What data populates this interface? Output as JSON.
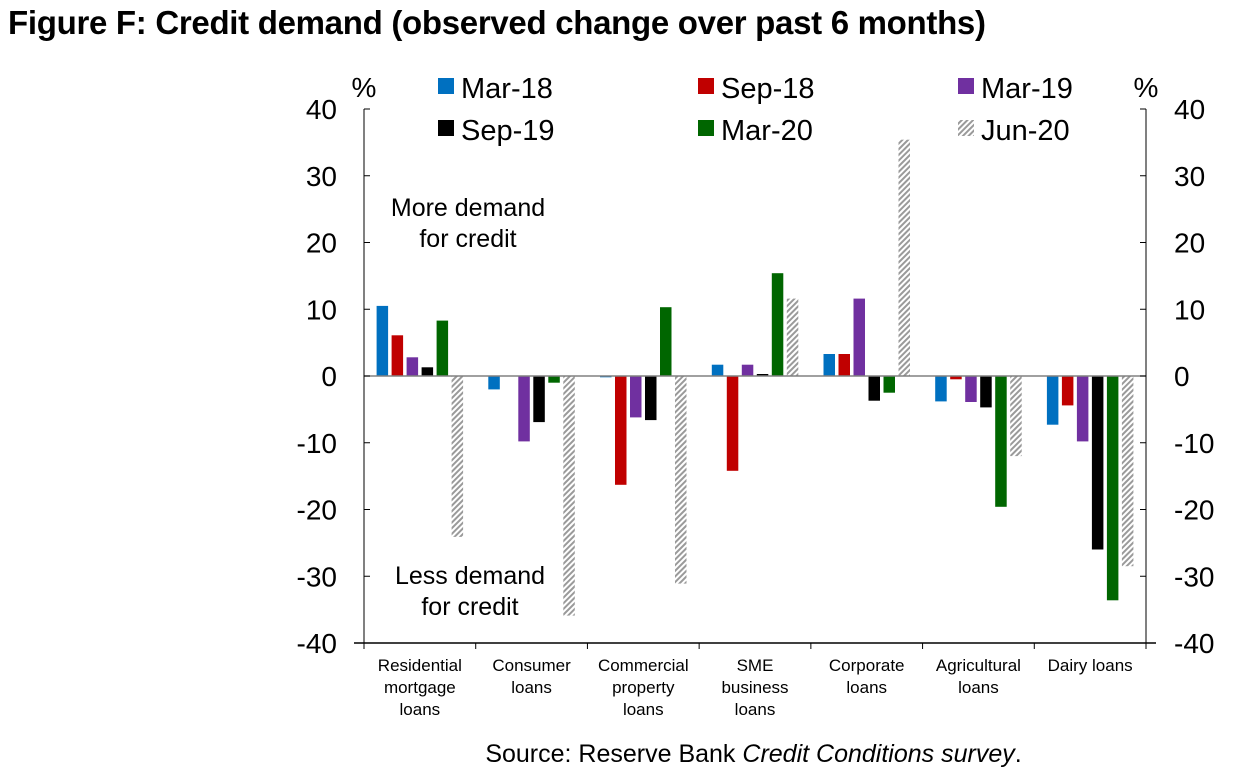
{
  "chart_data": {
    "type": "bar",
    "title": "Figure F: Credit demand (observed change over past 6 months)",
    "xlabel": "",
    "ylabel": "%",
    "ylabel_right": "%",
    "ylim": [
      -40,
      40
    ],
    "yticks": [
      40,
      30,
      20,
      10,
      0,
      -10,
      -20,
      -30,
      -40
    ],
    "grid": false,
    "legend_position": "top",
    "categories": [
      [
        "Residential",
        "mortgage",
        "loans"
      ],
      [
        "Consumer",
        "loans"
      ],
      [
        "Commercial",
        "property",
        "loans"
      ],
      [
        "SME",
        "business",
        "loans"
      ],
      [
        "Corporate",
        "loans"
      ],
      [
        "Agricultural",
        "loans"
      ],
      [
        "Dairy loans"
      ]
    ],
    "category_names": [
      "Residential mortgage loans",
      "Consumer loans",
      "Commercial property loans",
      "SME business loans",
      "Corporate loans",
      "Agricultural loans",
      "Dairy loans"
    ],
    "series": [
      {
        "name": "Mar-18",
        "color": "#0070C0",
        "pattern": "solid",
        "values": [
          10.5,
          -2.0,
          -0.2,
          1.7,
          3.3,
          -3.8,
          -7.3
        ]
      },
      {
        "name": "Sep-18",
        "color": "#C00000",
        "pattern": "solid",
        "values": [
          6.1,
          0.0,
          -16.3,
          -14.2,
          3.3,
          -0.5,
          -4.4
        ]
      },
      {
        "name": "Mar-19",
        "color": "#7030A0",
        "pattern": "solid",
        "values": [
          2.8,
          -9.8,
          -6.2,
          1.7,
          11.6,
          -3.9,
          -9.8
        ]
      },
      {
        "name": "Sep-19",
        "color": "#000000",
        "pattern": "solid",
        "values": [
          1.3,
          -6.9,
          -6.6,
          0.3,
          -3.7,
          -4.7,
          -26.0
        ]
      },
      {
        "name": "Mar-20",
        "color": "#006600",
        "pattern": "solid",
        "values": [
          8.3,
          -1.0,
          10.3,
          15.4,
          -2.5,
          -19.6,
          -33.6
        ]
      },
      {
        "name": "Jun-20",
        "color": "#A6A6A6",
        "pattern": "hatched",
        "values": [
          -24.1,
          -35.9,
          -31.1,
          11.6,
          35.4,
          -12.0,
          -28.5
        ]
      }
    ],
    "annotations": [
      {
        "text": [
          "More demand",
          "for credit"
        ]
      },
      {
        "text": [
          "Less demand",
          "for credit"
        ]
      }
    ]
  },
  "source": {
    "prefix": "Source: Reserve Bank ",
    "italic": "Credit Conditions survey",
    "suffix": "."
  }
}
